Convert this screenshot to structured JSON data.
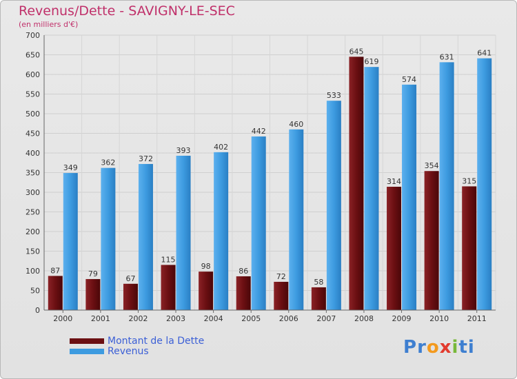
{
  "header": {
    "title": "Revenus/Dette - SAVIGNY-LE-SEC",
    "subtitle": "(en milliers d'€)"
  },
  "legend": {
    "items": [
      {
        "label": "Montant de la Dette",
        "color": "#6b0f12"
      },
      {
        "label": "Revenus",
        "color": "#3d9be0"
      }
    ]
  },
  "logo": {
    "letters": [
      {
        "ch": "P",
        "color": "#3e7fd0"
      },
      {
        "ch": "r",
        "color": "#3e7fd0"
      },
      {
        "ch": "o",
        "color": "#f39a1e"
      },
      {
        "ch": "x",
        "color": "#e23b2e"
      },
      {
        "ch": "i",
        "color": "#78b83a"
      },
      {
        "ch": "t",
        "color": "#3e7fd0"
      },
      {
        "ch": "i",
        "color": "#3e7fd0"
      }
    ]
  },
  "chart_data": {
    "type": "bar",
    "title": "Revenus/Dette - SAVIGNY-LE-SEC",
    "subtitle": "(en milliers d'€)",
    "categories": [
      "2000",
      "2001",
      "2002",
      "2003",
      "2004",
      "2005",
      "2006",
      "2007",
      "2008",
      "2009",
      "2010",
      "2011"
    ],
    "series": [
      {
        "name": "Montant de la Dette",
        "color": "#6b0f12",
        "values": [
          87,
          79,
          67,
          115,
          98,
          86,
          72,
          58,
          645,
          314,
          354,
          315
        ]
      },
      {
        "name": "Revenus",
        "color": "#3d9be0",
        "values": [
          349,
          362,
          372,
          393,
          402,
          442,
          460,
          533,
          619,
          574,
          631,
          641
        ]
      }
    ],
    "ylim": [
      0,
      700
    ],
    "yticks": [
      0,
      50,
      100,
      150,
      200,
      250,
      300,
      350,
      400,
      450,
      500,
      550,
      600,
      650,
      700
    ],
    "grid": true,
    "legend_position": "bottom-left"
  }
}
